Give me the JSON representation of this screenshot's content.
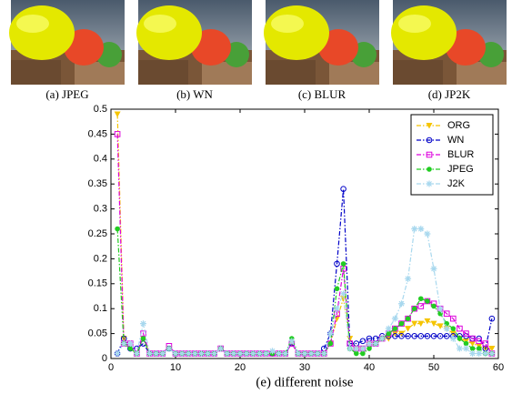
{
  "images": {
    "captions": [
      "(a) JPEG",
      "(b) WN",
      "(c) BLUR",
      "(d) JP2K"
    ]
  },
  "chart_data": {
    "type": "line",
    "caption": "(e) different noise",
    "x": [
      1,
      2,
      3,
      4,
      5,
      6,
      7,
      8,
      9,
      10,
      11,
      12,
      13,
      14,
      15,
      16,
      17,
      18,
      19,
      20,
      21,
      22,
      23,
      24,
      25,
      26,
      27,
      28,
      29,
      30,
      31,
      32,
      33,
      34,
      35,
      36,
      37,
      38,
      39,
      40,
      41,
      42,
      43,
      44,
      45,
      46,
      47,
      48,
      49,
      50,
      51,
      52,
      53,
      54,
      55,
      56,
      57,
      58,
      59
    ],
    "xlim": [
      0,
      60
    ],
    "xticks": [
      0,
      10,
      20,
      30,
      40,
      50,
      60
    ],
    "ylim": [
      0,
      0.5
    ],
    "yticks": [
      0,
      0.05,
      0.1,
      0.15,
      0.2,
      0.25,
      0.3,
      0.35,
      0.4,
      0.45,
      0.5
    ],
    "legend": "upper right",
    "series": [
      {
        "name": "ORG",
        "color": "#f5c400",
        "marker": "triangle-down",
        "values": [
          0.49,
          0.04,
          0.02,
          0.01,
          0.04,
          0.01,
          0.01,
          0.01,
          0.02,
          0.01,
          0.01,
          0.01,
          0.01,
          0.01,
          0.01,
          0.01,
          0.02,
          0.01,
          0.01,
          0.01,
          0.01,
          0.01,
          0.01,
          0.01,
          0.01,
          0.01,
          0.01,
          0.03,
          0.01,
          0.01,
          0.01,
          0.01,
          0.01,
          0.03,
          0.08,
          0.12,
          0.04,
          0.02,
          0.02,
          0.03,
          0.03,
          0.04,
          0.04,
          0.05,
          0.05,
          0.06,
          0.07,
          0.07,
          0.075,
          0.07,
          0.065,
          0.06,
          0.05,
          0.04,
          0.035,
          0.03,
          0.025,
          0.02,
          0.02
        ]
      },
      {
        "name": "WN",
        "color": "#0000c8",
        "marker": "circle-open",
        "values": [
          0.01,
          0.04,
          0.02,
          0.02,
          0.03,
          0.01,
          0.01,
          0.01,
          0.02,
          0.01,
          0.01,
          0.01,
          0.01,
          0.01,
          0.01,
          0.01,
          0.02,
          0.01,
          0.01,
          0.01,
          0.01,
          0.01,
          0.01,
          0.01,
          0.01,
          0.01,
          0.01,
          0.03,
          0.01,
          0.01,
          0.01,
          0.01,
          0.02,
          0.05,
          0.19,
          0.34,
          0.03,
          0.03,
          0.035,
          0.04,
          0.04,
          0.045,
          0.045,
          0.045,
          0.045,
          0.045,
          0.045,
          0.045,
          0.045,
          0.045,
          0.045,
          0.045,
          0.045,
          0.045,
          0.045,
          0.04,
          0.04,
          0.02,
          0.08
        ]
      },
      {
        "name": "BLUR",
        "color": "#dd00dd",
        "marker": "square-open",
        "values": [
          0.45,
          0.03,
          0.03,
          0.01,
          0.05,
          0.01,
          0.01,
          0.01,
          0.025,
          0.01,
          0.01,
          0.01,
          0.01,
          0.01,
          0.01,
          0.01,
          0.02,
          0.01,
          0.01,
          0.01,
          0.01,
          0.01,
          0.01,
          0.01,
          0.01,
          0.01,
          0.01,
          0.03,
          0.01,
          0.01,
          0.01,
          0.01,
          0.01,
          0.03,
          0.09,
          0.18,
          0.03,
          0.02,
          0.02,
          0.03,
          0.03,
          0.04,
          0.05,
          0.06,
          0.07,
          0.08,
          0.1,
          0.105,
          0.115,
          0.11,
          0.1,
          0.09,
          0.08,
          0.06,
          0.05,
          0.04,
          0.035,
          0.03,
          0.01
        ]
      },
      {
        "name": "JPEG",
        "color": "#22cc22",
        "marker": "circle-filled",
        "values": [
          0.26,
          0.03,
          0.02,
          0.01,
          0.04,
          0.01,
          0.01,
          0.01,
          0.02,
          0.01,
          0.01,
          0.01,
          0.01,
          0.01,
          0.01,
          0.01,
          0.02,
          0.01,
          0.01,
          0.01,
          0.01,
          0.01,
          0.01,
          0.01,
          0.01,
          0.01,
          0.01,
          0.04,
          0.01,
          0.01,
          0.01,
          0.01,
          0.01,
          0.03,
          0.14,
          0.19,
          0.02,
          0.01,
          0.01,
          0.02,
          0.03,
          0.04,
          0.05,
          0.06,
          0.07,
          0.08,
          0.1,
          0.12,
          0.115,
          0.105,
          0.09,
          0.07,
          0.06,
          0.04,
          0.03,
          0.02,
          0.02,
          0.01,
          0.01
        ]
      },
      {
        "name": "J2K",
        "color": "#a8d8ee",
        "marker": "star",
        "values": [
          0.01,
          0.03,
          0.03,
          0.01,
          0.07,
          0.01,
          0.01,
          0.01,
          0.02,
          0.01,
          0.01,
          0.01,
          0.01,
          0.01,
          0.01,
          0.01,
          0.02,
          0.01,
          0.01,
          0.01,
          0.01,
          0.01,
          0.01,
          0.01,
          0.015,
          0.01,
          0.01,
          0.035,
          0.01,
          0.01,
          0.01,
          0.01,
          0.01,
          0.05,
          0.1,
          0.13,
          0.02,
          0.02,
          0.02,
          0.03,
          0.03,
          0.04,
          0.06,
          0.08,
          0.11,
          0.16,
          0.26,
          0.26,
          0.25,
          0.18,
          0.1,
          0.06,
          0.04,
          0.02,
          0.02,
          0.01,
          0.01,
          0.01,
          0.01
        ]
      }
    ]
  }
}
